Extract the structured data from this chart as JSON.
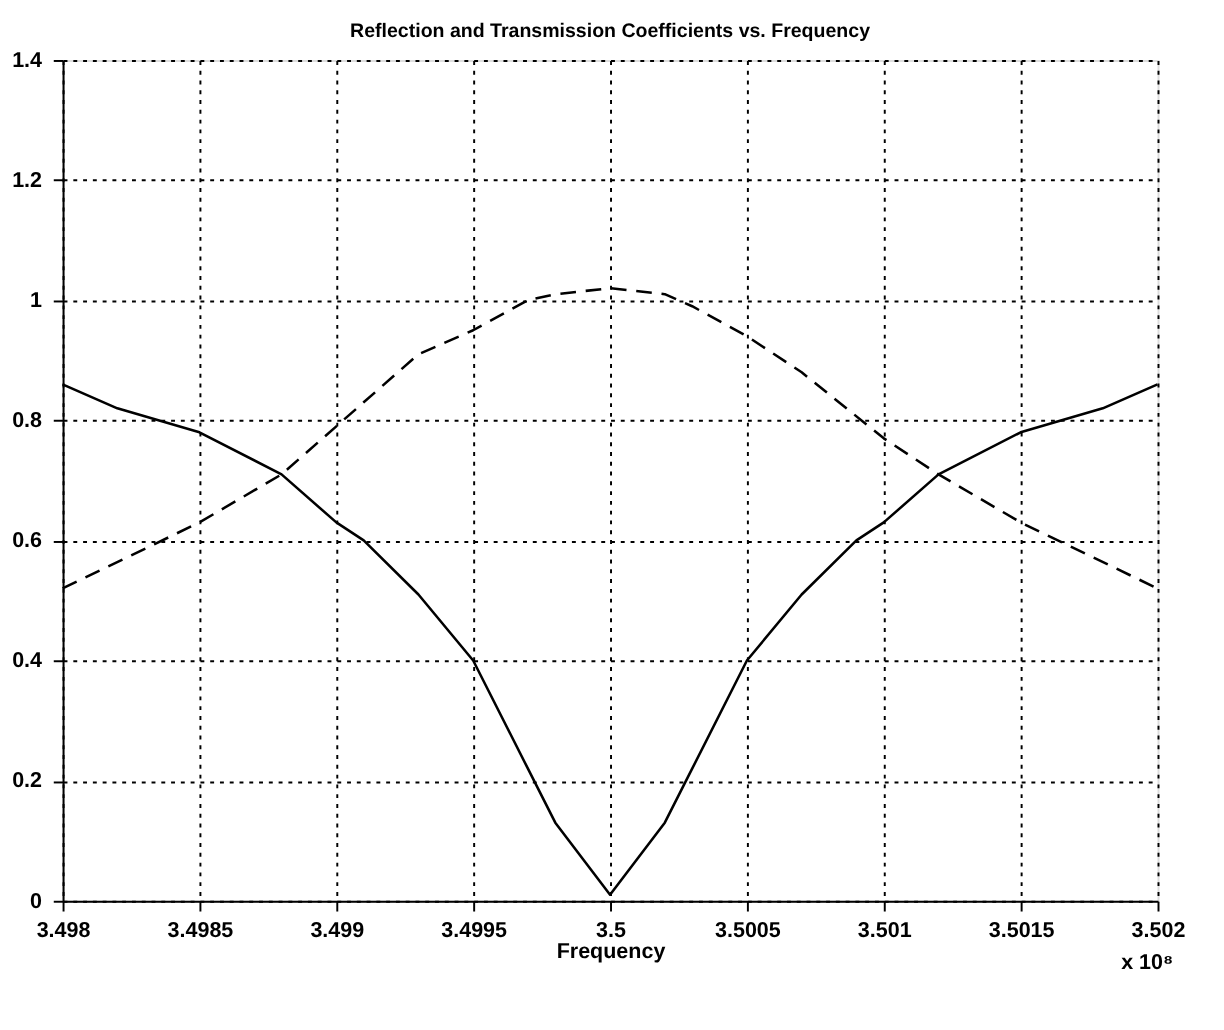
{
  "chart_data": {
    "type": "line",
    "title": "Reflection and Transmission Coefficients vs. Frequency",
    "xlabel": "Frequency",
    "annotations": [
      "x 10⁸"
    ],
    "xlim": [
      3.498,
      3.502
    ],
    "xticks": [
      3.498,
      3.4985,
      3.499,
      3.4995,
      3.5,
      3.5005,
      3.501,
      3.5015,
      3.502
    ],
    "ylim": [
      0,
      1.4
    ],
    "yticks": [
      0,
      0.2,
      0.4,
      0.6,
      0.8,
      1,
      1.2,
      1.4
    ],
    "grid": true,
    "marker": "none",
    "series": [
      {
        "color": "#000000",
        "line_style": "solid",
        "x": [
          3.498,
          3.4982,
          3.4985,
          3.4988,
          3.499,
          3.4991,
          3.4993,
          3.4995,
          3.4997,
          3.4998,
          3.5,
          3.5002,
          3.5003,
          3.5005,
          3.5007,
          3.5009,
          3.501,
          3.5012,
          3.5015,
          3.5018,
          3.502
        ],
        "values": [
          0.86,
          0.82,
          0.78,
          0.71,
          0.63,
          0.6,
          0.51,
          0.4,
          0.22,
          0.13,
          0.01,
          0.13,
          0.22,
          0.4,
          0.51,
          0.6,
          0.63,
          0.71,
          0.78,
          0.82,
          0.86
        ]
      },
      {
        "color": "#000000",
        "line_style": "dashed",
        "x": [
          3.498,
          3.4985,
          3.4988,
          3.499,
          3.4991,
          3.4993,
          3.4995,
          3.4997,
          3.4998,
          3.5,
          3.5002,
          3.5003,
          3.5005,
          3.5007,
          3.501,
          3.5012,
          3.5015,
          3.502
        ],
        "values": [
          0.52,
          0.63,
          0.71,
          0.79,
          0.83,
          0.91,
          0.95,
          1.0,
          1.01,
          1.02,
          1.01,
          0.99,
          0.94,
          0.88,
          0.77,
          0.71,
          0.63,
          0.52
        ]
      }
    ]
  }
}
